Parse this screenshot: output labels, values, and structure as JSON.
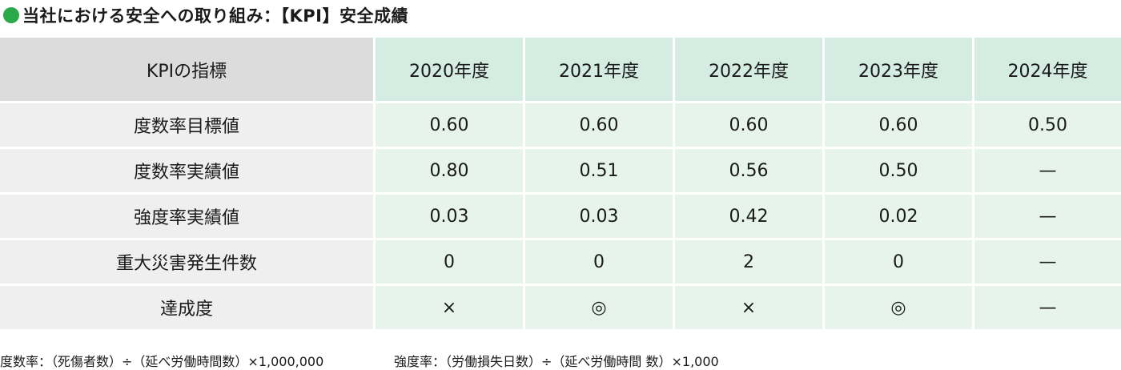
{
  "title": "当社における安全への取り組み：【KPI】安全成績",
  "table": {
    "header_label": "KPIの指標",
    "years": [
      "2020年度",
      "2021年度",
      "2022年度",
      "2023年度",
      "2024年度"
    ],
    "rows": [
      {
        "label": "度数率目標値",
        "values": [
          "0.60",
          "0.60",
          "0.60",
          "0.60",
          "0.50"
        ]
      },
      {
        "label": "度数率実績値",
        "values": [
          "0.80",
          "0.51",
          "0.56",
          "0.50",
          "—"
        ]
      },
      {
        "label": "強度率実績値",
        "values": [
          "0.03",
          "0.03",
          "0.42",
          "0.02",
          "—"
        ]
      },
      {
        "label": "重大災害発生件数",
        "values": [
          "0",
          "0",
          "2",
          "0",
          "—"
        ]
      },
      {
        "label": "達成度",
        "values": [
          "×",
          "◎",
          "×",
          "◎",
          "—"
        ]
      }
    ]
  },
  "notes": {
    "frequency_rate": "度数率：（死傷者数）÷（延べ労働時間数）×1,000,000",
    "severity_rate": "強度率：（労働損失日数）÷（延べ労働時間 数）×1,000"
  },
  "colors": {
    "title_dot": "#2aa84a",
    "header_label_bg": "#dcdcdc",
    "header_year_bg": "#d4ece1",
    "row_label_bg": "#efefef",
    "cell_bg": "#e6f4ec"
  }
}
